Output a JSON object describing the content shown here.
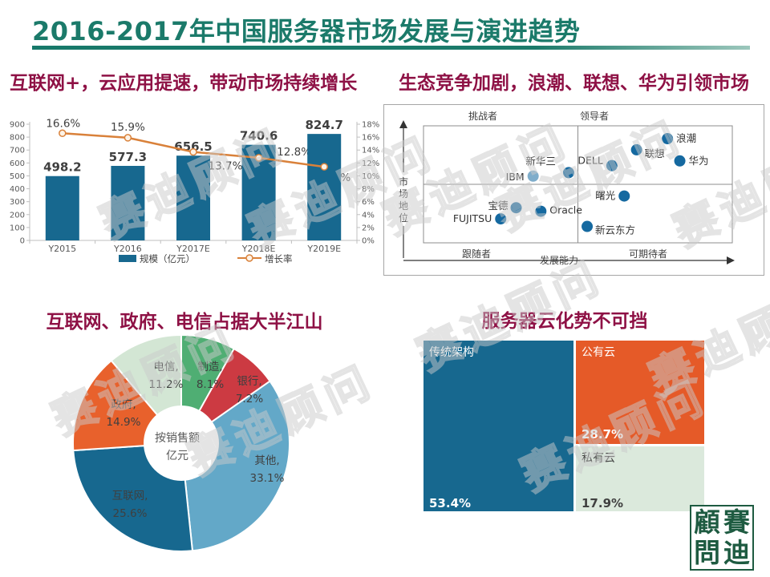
{
  "slide": {
    "title": "2016-2017年中国服务器市场发展与演进趋势",
    "watermark": {
      "text": "赛迪顾问"
    },
    "logo": {
      "chars": [
        "顧",
        "賽",
        "問",
        "迪"
      ]
    },
    "colors": {
      "title_accent": "#1b7a6a",
      "headline_accent": "#8e1145"
    }
  },
  "sections": {
    "market_growth": {
      "headline": "互联网+，云应用提速，带动市场持续增长"
    },
    "competition": {
      "headline": "生态竞争加剧，浪潮、联想、华为引领市场"
    },
    "industry_share": {
      "headline": "互联网、政府、电信占据大半江山"
    },
    "cloudification": {
      "headline": "服务器云化势不可挡"
    }
  },
  "chart_data": [
    {
      "id": "market-size-growth",
      "type": "bar+line",
      "categories": [
        "Y2015",
        "Y2016",
        "Y2017E",
        "Y2018E",
        "Y2019E"
      ],
      "series": [
        {
          "name": "规模（亿元）",
          "type": "bar",
          "color": "#17688f",
          "values": [
            498.2,
            577.3,
            656.5,
            740.6,
            824.7
          ]
        },
        {
          "name": "增长率",
          "type": "line",
          "color": "#d9813a",
          "unit": "%",
          "values": [
            16.6,
            15.9,
            13.7,
            12.8,
            11.4
          ]
        }
      ],
      "left_axis": {
        "min": 0,
        "max": 900,
        "step": 100
      },
      "right_axis": {
        "min": 0,
        "max": 18,
        "step": 2,
        "unit": "%"
      },
      "legend_position": "bottom",
      "grid": false
    },
    {
      "id": "vendor-landscape",
      "type": "scatter",
      "xlabel": "发展能力",
      "ylabel": "市场地位",
      "quadrant_labels": {
        "top_left": "挑战者",
        "top_right": "领导者",
        "bottom_left": "跟随者",
        "bottom_right": "可期待者"
      },
      "point_color": "#1569a0",
      "xlim": [
        0,
        100
      ],
      "ylim": [
        0,
        100
      ],
      "points": [
        {
          "name": "浪潮",
          "x": 79,
          "y": 89
        },
        {
          "name": "联想",
          "x": 69,
          "y": 79.5
        },
        {
          "name": "华为",
          "x": 83,
          "y": 70
        },
        {
          "name": "DELL",
          "x": 61,
          "y": 66
        },
        {
          "name": "新华三",
          "x": 47,
          "y": 60
        },
        {
          "name": "IBM",
          "x": 35.5,
          "y": 57,
          "muted": true
        },
        {
          "name": "曙光",
          "x": 65,
          "y": 40
        },
        {
          "name": "新云东方",
          "x": 53,
          "y": 14
        },
        {
          "name": "宝德",
          "x": 30,
          "y": 30
        },
        {
          "name": "Oracle",
          "x": 38,
          "y": 27
        },
        {
          "name": "FUJITSU",
          "x": 25,
          "y": 20.5
        }
      ]
    },
    {
      "id": "industry-share",
      "type": "pie",
      "unit": "%",
      "center_label": [
        "按销售额",
        "亿元"
      ],
      "start_angle_deg": 0,
      "slices": [
        {
          "label": "制造",
          "value": 8.1,
          "color": "#4fae73"
        },
        {
          "label": "银行",
          "value": 7.2,
          "color": "#cc3a42"
        },
        {
          "label": "其他",
          "value": 33.1,
          "color": "#63a8c8"
        },
        {
          "label": "互联网",
          "value": 25.6,
          "color": "#17688f"
        },
        {
          "label": "政府",
          "value": 14.9,
          "color": "#e8612c"
        },
        {
          "label": "电信",
          "value": 11.2,
          "color": "#d3e6d4"
        }
      ]
    },
    {
      "id": "architecture-share",
      "type": "treemap",
      "unit": "%",
      "items": [
        {
          "label": "传统架构",
          "value": 53.4,
          "color": "#17688f",
          "text_color": "#ffffff"
        },
        {
          "label": "公有云",
          "value": 28.7,
          "color": "#e55a28",
          "text_color": "#ffffff"
        },
        {
          "label": "私有云",
          "value": 17.9,
          "color": "#dbe9dc",
          "text_color": "#404040"
        }
      ]
    }
  ]
}
